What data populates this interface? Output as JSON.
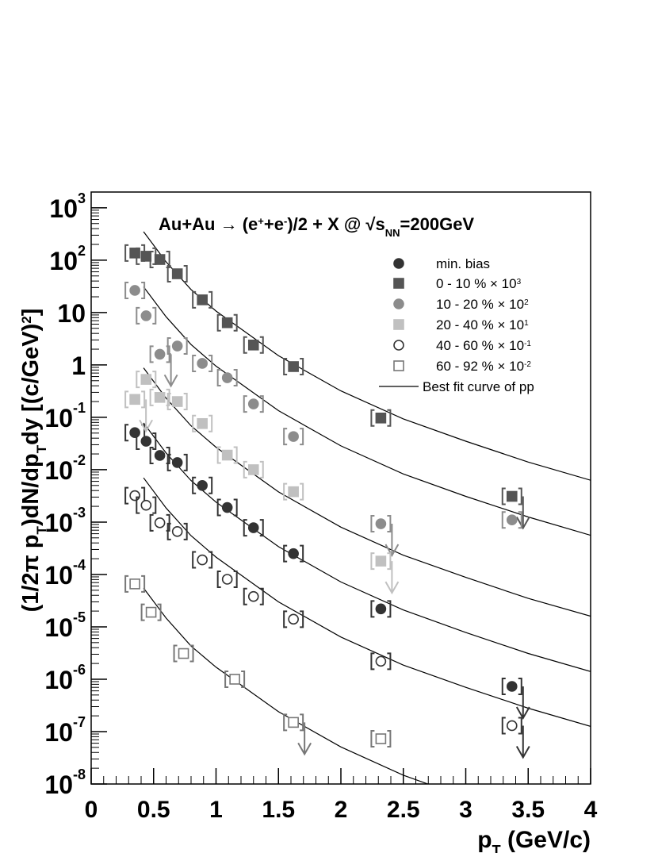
{
  "chart_data": {
    "type": "scatter",
    "title": [
      {
        "text": "Au+Au → (e"
      },
      {
        "text": "+",
        "shift": "sup"
      },
      {
        "text": "+e"
      },
      {
        "text": "-",
        "shift": "sup"
      },
      {
        "text": ")/2 + X @ √"
      },
      {
        "text": "s"
      },
      {
        "text": "NN",
        "shift": "sub"
      },
      {
        "text": "=200GeV"
      }
    ],
    "x_label": [
      {
        "text": "p"
      },
      {
        "text": "T",
        "shift": "sub"
      },
      {
        "text": " (GeV/c)"
      }
    ],
    "y_label": [
      {
        "text": "(1/2π p"
      },
      {
        "text": "T",
        "shift": "sub"
      },
      {
        "text": ")dN/dp"
      },
      {
        "text": "T",
        "shift": "sub"
      },
      {
        "text": "dy [(c/GeV)"
      },
      {
        "text": "2",
        "shift": "sup"
      },
      {
        "text": "]"
      }
    ],
    "xlim": [
      0,
      4
    ],
    "xticks": [
      0,
      0.5,
      1,
      1.5,
      2,
      2.5,
      3,
      3.5,
      4
    ],
    "ylim": [
      1e-08,
      2000
    ],
    "log_y": true,
    "yticks": [
      {
        "value": 1e-08,
        "label": "10",
        "exp": "-8"
      },
      {
        "value": 1e-07,
        "label": "10",
        "exp": "-7"
      },
      {
        "value": 1e-06,
        "label": "10",
        "exp": "-6"
      },
      {
        "value": 1e-05,
        "label": "10",
        "exp": "-5"
      },
      {
        "value": 0.0001,
        "label": "10",
        "exp": "-4"
      },
      {
        "value": 0.001,
        "label": "10",
        "exp": "-3"
      },
      {
        "value": 0.01,
        "label": "10",
        "exp": "-2"
      },
      {
        "value": 0.1,
        "label": "10",
        "exp": "-1"
      },
      {
        "value": 1,
        "label": "1"
      },
      {
        "value": 10,
        "label": "10"
      },
      {
        "value": 100,
        "label": "10",
        "exp": "2"
      },
      {
        "value": 1000,
        "label": "10",
        "exp": "3"
      }
    ],
    "series": [
      {
        "name": [
          {
            "text": "min. bias"
          }
        ],
        "color": "#333333",
        "marker": "circle",
        "filled": true,
        "x": [
          0.35,
          0.44,
          0.55,
          0.69,
          0.89,
          1.09,
          1.3,
          1.62,
          2.32,
          3.37
        ],
        "values": [
          0.051,
          0.035,
          0.0187,
          0.0137,
          0.005,
          0.0019,
          0.00078,
          0.00025,
          2.2e-05,
          7.3e-07
        ],
        "upper_limit": [
          false,
          false,
          false,
          false,
          false,
          false,
          false,
          false,
          false,
          true
        ]
      },
      {
        "name": [
          {
            "text": "0 - 10 % × 10"
          },
          {
            "text": "3",
            "shift": "sup"
          }
        ],
        "color": "#555555",
        "marker": "square",
        "filled": true,
        "x": [
          0.35,
          0.44,
          0.55,
          0.69,
          0.89,
          1.09,
          1.3,
          1.62,
          2.32,
          3.37
        ],
        "values": [
          137,
          119,
          103,
          55,
          17.5,
          6.4,
          2.4,
          0.93,
          0.097,
          0.0031
        ],
        "upper_limit": [
          false,
          false,
          false,
          false,
          false,
          false,
          false,
          false,
          false,
          true
        ]
      },
      {
        "name": [
          {
            "text": "10 - 20 % × 10"
          },
          {
            "text": "2",
            "shift": "sup"
          }
        ],
        "color": "#8c8c8c",
        "marker": "circle",
        "filled": true,
        "x": [
          0.35,
          0.44,
          0.55,
          0.69,
          0.89,
          1.09,
          1.3,
          1.62,
          2.32,
          3.37
        ],
        "values": [
          26.5,
          8.7,
          1.6,
          2.3,
          1.07,
          0.57,
          0.18,
          0.043,
          0.00093,
          0.0011
        ],
        "upper_limit": [
          false,
          false,
          true,
          false,
          false,
          false,
          false,
          false,
          true,
          false
        ]
      },
      {
        "name": [
          {
            "text": "20 - 40 % × 10"
          },
          {
            "text": "1",
            "shift": "sup"
          }
        ],
        "color": "#c0c0c0",
        "marker": "square",
        "filled": true,
        "x": [
          0.35,
          0.44,
          0.55,
          0.69,
          0.89,
          1.09,
          1.3,
          1.62,
          2.32
        ],
        "values": [
          0.22,
          0.53,
          0.24,
          0.2,
          0.076,
          0.019,
          0.01,
          0.0038,
          0.00018
        ],
        "upper_limit": [
          true,
          false,
          false,
          false,
          false,
          false,
          false,
          false,
          true
        ]
      },
      {
        "name": [
          {
            "text": "40 - 60 % × 10"
          },
          {
            "text": "-1",
            "shift": "sup"
          }
        ],
        "color": "#333333",
        "marker": "circle",
        "filled": false,
        "x": [
          0.35,
          0.44,
          0.55,
          0.69,
          0.89,
          1.09,
          1.3,
          1.62,
          2.32,
          3.37
        ],
        "values": [
          0.0032,
          0.0021,
          0.00097,
          0.00066,
          0.00019,
          8.1e-05,
          3.8e-05,
          1.4e-05,
          2.2e-06,
          1.3e-07
        ],
        "upper_limit": [
          false,
          false,
          false,
          false,
          false,
          false,
          false,
          false,
          false,
          true
        ]
      },
      {
        "name": [
          {
            "text": "60 - 92 % × 10"
          },
          {
            "text": "-2",
            "shift": "sup"
          }
        ],
        "color": "#777777",
        "marker": "square",
        "filled": false,
        "x": [
          0.35,
          0.48,
          0.74,
          1.15,
          1.62,
          2.32
        ],
        "values": [
          6.6e-05,
          1.9e-05,
          3.1e-06,
          1e-06,
          1.5e-07,
          7.3e-08
        ],
        "upper_limit": [
          false,
          false,
          false,
          false,
          true,
          false
        ]
      }
    ],
    "fit": {
      "name": "Best fit curve of pp",
      "color": "#000000",
      "x": [
        0.42,
        0.6,
        0.8,
        1,
        1.5,
        2,
        2.5,
        3,
        3.5,
        4
      ],
      "curves": [
        [
          350,
          93,
          27.5,
          10.7,
          1.5,
          0.32,
          0.093,
          0.035,
          0.014,
          0.0063
        ],
        [
          31,
          8.3,
          2.45,
          0.95,
          0.134,
          0.0285,
          0.0083,
          0.0031,
          0.00125,
          0.00056
        ],
        [
          0.88,
          0.233,
          0.069,
          0.0269,
          0.00377,
          0.0008,
          0.000233,
          8.8e-05,
          3.5e-05,
          1.6e-05
        ],
        [
          0.078,
          0.0208,
          0.0062,
          0.0024,
          0.00034,
          7.2e-05,
          2.1e-05,
          7.8e-06,
          3.1e-06,
          1.4e-06
        ],
        [
          0.007,
          0.00186,
          0.00055,
          0.000214,
          3e-05,
          6.4e-06,
          1.86e-06,
          7e-07,
          2.8e-07,
          1.26e-07
        ],
        [
          5.5e-05,
          1.47e-05,
          4.3e-06,
          1.7e-06,
          2.4e-07,
          5.1e-08,
          1.47e-08,
          5.5e-09,
          2.2e-09,
          1e-09
        ]
      ]
    }
  }
}
